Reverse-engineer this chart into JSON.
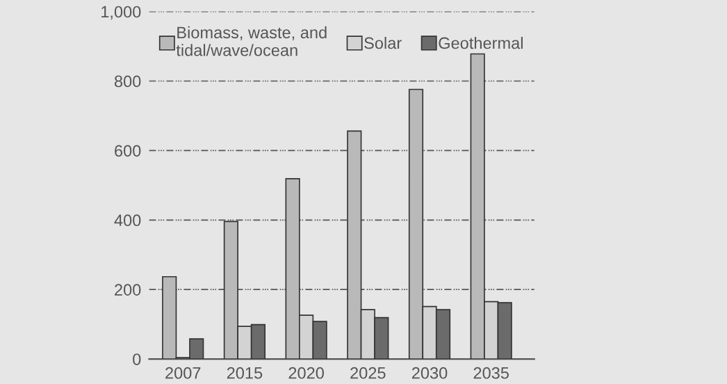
{
  "chart_data": {
    "type": "bar",
    "categories": [
      "2007",
      "2015",
      "2020",
      "2025",
      "2030",
      "2035"
    ],
    "series": [
      {
        "name": "Biomass, waste, and\ntidal/wave/ocean",
        "color": "#b9b9b9",
        "values": [
          237,
          396,
          519,
          656,
          776,
          878
        ]
      },
      {
        "name": "Solar",
        "color": "#d3d3d3",
        "values": [
          4,
          94,
          126,
          142,
          151,
          165
        ]
      },
      {
        "name": "Geothermal",
        "color": "#6b6b6b",
        "values": [
          58,
          99,
          108,
          119,
          142,
          162
        ]
      }
    ],
    "ylim": [
      0,
      1000
    ],
    "yticks": [
      0,
      200,
      400,
      600,
      800,
      {
        "value": 1000,
        "label": "1,000"
      }
    ],
    "grid": "y",
    "legend": "top"
  }
}
